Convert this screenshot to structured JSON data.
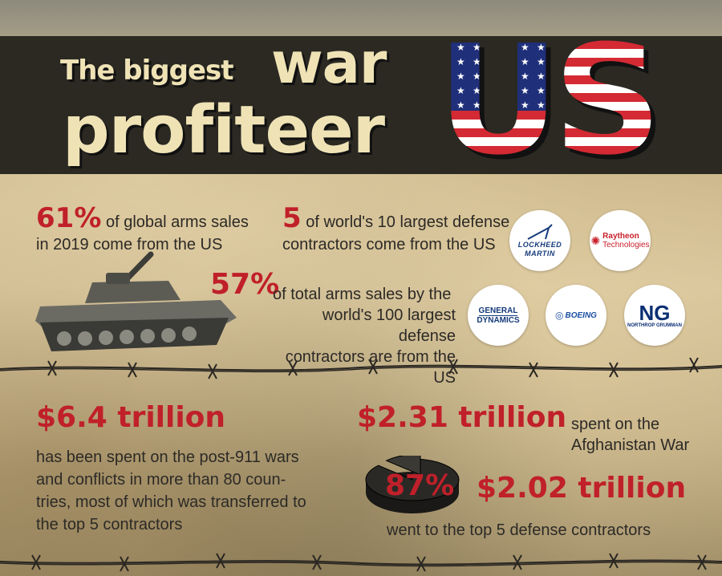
{
  "header": {
    "title_line1": "The biggest",
    "title_word": "war",
    "title_line2": "profiteer",
    "flag_text": "US"
  },
  "stats": {
    "arms_sales": {
      "value": "61%",
      "text_line1": "of global arms sales",
      "text_line2": "in 2019 come from the US"
    },
    "contractors": {
      "value": "5",
      "text_line1": "of world's 10 largest defense",
      "text_line2": "contractors come from the US"
    },
    "total_sales": {
      "value": "57%",
      "text_line1": "of total arms sales by the",
      "text_line2": "world's 100 largest defense",
      "text_line3": "contractors are from the US"
    }
  },
  "logos": {
    "lockheed": {
      "line1": "LOCKHEED",
      "line2": "MARTIN"
    },
    "raytheon": {
      "line1": "Raytheon",
      "line2": "Technologies"
    },
    "general_dynamics": {
      "line1": "GENERAL",
      "line2": "DYNAMICS"
    },
    "boeing": {
      "label": "BOEING"
    },
    "northrop": {
      "mark": "NG",
      "sub": "NORTHROP GRUMMAN"
    }
  },
  "spending": {
    "post911": {
      "value": "$6.4 trillion",
      "line1": "has been spent on the post-911 wars",
      "line2": "and conflicts in more than 80 coun-",
      "line3": "tries, most of which was transferred to",
      "line4": "the top 5 contractors"
    },
    "afghanistan": {
      "value": "$2.31 trillion",
      "line1": "spent on the",
      "line2": "Afghanistan War"
    },
    "contractor_share": {
      "percent": "87%",
      "fraction": 0.87,
      "value": "$2.02 trillion",
      "text": "went to the top 5 defense contractors"
    }
  },
  "colors": {
    "accent_red": "#c0202a",
    "banner": "#2b2922",
    "title_cream": "#efe3b6",
    "flag_blue": "#1f2f7a"
  }
}
